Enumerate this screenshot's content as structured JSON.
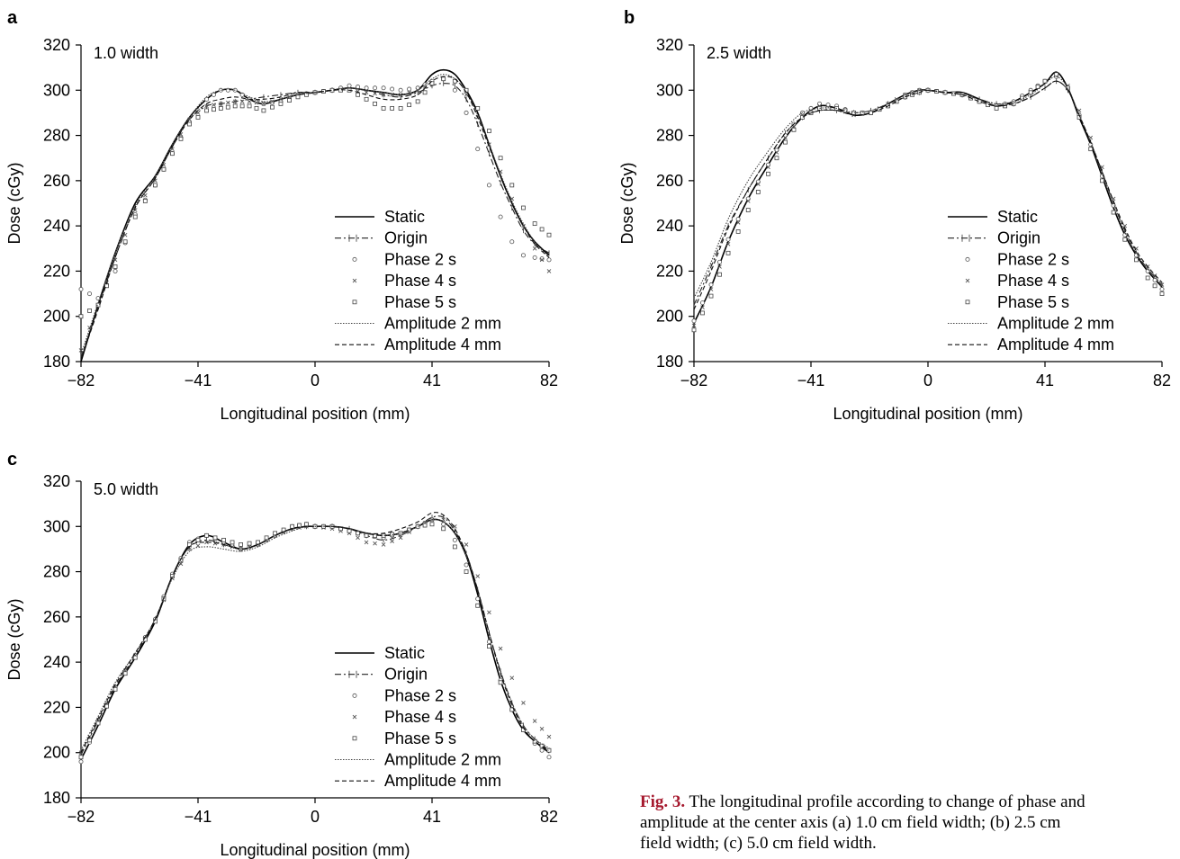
{
  "caption": {
    "label": "Fig. 3.",
    "lines": [
      " The longitudinal profile according to change of phase and",
      "amplitude at the center axis (a) 1.0 cm field width; (b) 2.5 cm",
      "field width; (c) 5.0 cm field width."
    ]
  },
  "legend_entries": [
    {
      "label": "Static",
      "style": "solid"
    },
    {
      "label": "Origin",
      "style": "dashdot-tick"
    },
    {
      "label": "Phase 2 s",
      "style": "circle"
    },
    {
      "label": "Phase 4 s",
      "style": "cross"
    },
    {
      "label": "Phase 5 s",
      "style": "square"
    },
    {
      "label": "Amplitude 2 mm",
      "style": "dotted"
    },
    {
      "label": "Amplitude 4 mm",
      "style": "dashed"
    }
  ],
  "chart_data": [
    {
      "panel": "a",
      "type": "line",
      "annotation": "1.0 width",
      "xlabel": "Longitudinal position (mm)",
      "ylabel": "Dose (cGy)",
      "xlim": [
        -82,
        82
      ],
      "ylim": [
        180,
        320
      ],
      "xticks": [
        -82,
        -41,
        0,
        41,
        82
      ],
      "xtick_labels": [
        "−82",
        "−41",
        "0",
        "41",
        "82"
      ],
      "yticks": [
        180,
        200,
        220,
        240,
        260,
        280,
        300,
        320
      ],
      "grid": false,
      "legend_position": "lower-right",
      "x": [
        -82,
        -76,
        -70,
        -63,
        -56,
        -50,
        -44,
        -38,
        -33,
        -28,
        -23,
        -18,
        -12,
        -6,
        0,
        6,
        12,
        18,
        24,
        30,
        36,
        41,
        45,
        49,
        53,
        57,
        61,
        65,
        69,
        73,
        77,
        82
      ],
      "series": [
        {
          "name": "Static",
          "values": [
            180,
            205,
            228,
            250,
            262,
            276,
            288,
            296,
            300,
            300,
            296,
            294,
            296,
            298,
            299,
            300,
            301,
            300,
            299,
            298,
            300,
            307,
            309,
            307,
            300,
            290,
            276,
            262,
            250,
            240,
            233,
            227
          ]
        },
        {
          "name": "Origin",
          "values": [
            182,
            204,
            226,
            248,
            261,
            275,
            287,
            293,
            294,
            295,
            296,
            297,
            298,
            299,
            299,
            300,
            301,
            300,
            298,
            297,
            299,
            302,
            303,
            302,
            296,
            285,
            272,
            259,
            248,
            238,
            232,
            228
          ]
        },
        {
          "name": "Phase 2 s",
          "values": [
            212,
            208,
            220,
            245,
            258,
            272,
            286,
            296,
            300,
            300,
            296,
            294,
            295,
            298,
            299,
            300,
            302,
            301,
            301,
            300,
            301,
            304,
            305,
            300,
            290,
            274,
            258,
            244,
            233,
            227,
            226,
            225
          ]
        },
        {
          "name": "Phase 4 s",
          "values": [
            185,
            205,
            225,
            247,
            260,
            274,
            287,
            293,
            294,
            295,
            295,
            294,
            296,
            298,
            299,
            300,
            300,
            299,
            298,
            298,
            300,
            303,
            305,
            304,
            298,
            288,
            276,
            264,
            252,
            240,
            230,
            220
          ]
        },
        {
          "name": "Phase 5 s",
          "values": [
            200,
            205,
            222,
            244,
            258,
            272,
            285,
            291,
            292,
            293,
            293,
            291,
            294,
            297,
            299,
            300,
            300,
            296,
            292,
            292,
            295,
            303,
            305,
            304,
            300,
            292,
            282,
            270,
            258,
            248,
            241,
            236
          ]
        },
        {
          "name": "Amplitude 2 mm",
          "values": [
            183,
            206,
            228,
            249,
            262,
            276,
            288,
            297,
            300,
            300,
            297,
            295,
            296,
            298,
            299,
            300,
            301,
            300,
            299,
            298,
            300,
            305,
            307,
            305,
            299,
            289,
            276,
            263,
            251,
            241,
            233,
            226
          ]
        },
        {
          "name": "Amplitude 4 mm",
          "values": [
            181,
            203,
            226,
            248,
            261,
            275,
            287,
            294,
            296,
            297,
            296,
            296,
            297,
            299,
            299,
            300,
            300,
            298,
            296,
            296,
            298,
            304,
            306,
            305,
            299,
            288,
            275,
            262,
            250,
            240,
            232,
            226
          ]
        }
      ]
    },
    {
      "panel": "b",
      "type": "line",
      "annotation": "2.5 width",
      "xlabel": "Longitudinal position (mm)",
      "ylabel": "Dose (cGy)",
      "xlim": [
        -82,
        82
      ],
      "ylim": [
        180,
        320
      ],
      "xticks": [
        -82,
        -41,
        0,
        41,
        82
      ],
      "xtick_labels": [
        "−82",
        "−41",
        "0",
        "41",
        "82"
      ],
      "yticks": [
        180,
        200,
        220,
        240,
        260,
        280,
        300,
        320
      ],
      "grid": false,
      "legend_position": "lower-right",
      "x": [
        -82,
        -76,
        -70,
        -63,
        -56,
        -50,
        -44,
        -38,
        -32,
        -26,
        -20,
        -14,
        -8,
        -3,
        0,
        6,
        12,
        18,
        24,
        30,
        36,
        41,
        45,
        49,
        53,
        57,
        61,
        65,
        69,
        73,
        77,
        82
      ],
      "series": [
        {
          "name": "Static",
          "values": [
            197,
            213,
            233,
            252,
            267,
            279,
            288,
            293,
            292,
            289,
            290,
            294,
            298,
            300,
            300,
            299,
            299,
            296,
            293,
            295,
            299,
            303,
            308,
            301,
            288,
            276,
            262,
            248,
            236,
            227,
            220,
            213
          ]
        },
        {
          "name": "Origin",
          "values": [
            205,
            222,
            240,
            256,
            270,
            281,
            288,
            291,
            291,
            290,
            291,
            294,
            297,
            299,
            300,
            299,
            298,
            296,
            294,
            294,
            297,
            301,
            304,
            300,
            289,
            277,
            264,
            250,
            238,
            228,
            221,
            214
          ]
        },
        {
          "name": "Phase 2 s",
          "values": [
            198,
            214,
            234,
            252,
            267,
            280,
            290,
            294,
            293,
            290,
            290,
            293,
            298,
            300,
            300,
            299,
            298,
            295,
            293,
            295,
            300,
            304,
            306,
            301,
            289,
            276,
            262,
            249,
            236,
            227,
            220,
            212
          ]
        },
        {
          "name": "Phase 4 s",
          "values": [
            196,
            212,
            232,
            251,
            266,
            279,
            289,
            293,
            292,
            289,
            290,
            294,
            298,
            300,
            300,
            299,
            298,
            295,
            292,
            294,
            299,
            304,
            307,
            302,
            291,
            279,
            266,
            252,
            240,
            230,
            222,
            214
          ]
        },
        {
          "name": "Phase 5 s",
          "values": [
            194,
            209,
            228,
            247,
            263,
            277,
            288,
            292,
            292,
            290,
            290,
            293,
            297,
            299,
            300,
            299,
            298,
            295,
            292,
            294,
            299,
            304,
            307,
            301,
            288,
            274,
            260,
            246,
            234,
            225,
            217,
            210
          ]
        },
        {
          "name": "Amplitude 2 mm",
          "values": [
            208,
            224,
            243,
            260,
            273,
            283,
            290,
            292,
            292,
            290,
            291,
            294,
            297,
            300,
            300,
            299,
            298,
            296,
            294,
            295,
            298,
            303,
            306,
            301,
            289,
            277,
            263,
            250,
            237,
            228,
            221,
            214
          ]
        },
        {
          "name": "Amplitude 4 mm",
          "values": [
            203,
            220,
            239,
            256,
            270,
            281,
            288,
            291,
            291,
            289,
            290,
            293,
            297,
            299,
            300,
            299,
            298,
            295,
            293,
            294,
            297,
            301,
            304,
            300,
            289,
            277,
            264,
            251,
            239,
            229,
            222,
            215
          ]
        }
      ]
    },
    {
      "panel": "c",
      "type": "line",
      "annotation": "5.0 width",
      "xlabel": "Longitudinal position (mm)",
      "ylabel": "Dose (cGy)",
      "xlim": [
        -82,
        82
      ],
      "ylim": [
        180,
        320
      ],
      "xticks": [
        -82,
        -41,
        0,
        41,
        82
      ],
      "xtick_labels": [
        "−82",
        "−41",
        "0",
        "41",
        "82"
      ],
      "yticks": [
        180,
        200,
        220,
        240,
        260,
        280,
        300,
        320
      ],
      "grid": false,
      "legend_position": "lower-right",
      "x": [
        -82,
        -76,
        -70,
        -63,
        -56,
        -50,
        -44,
        -38,
        -32,
        -26,
        -20,
        -14,
        -8,
        -3,
        0,
        6,
        12,
        18,
        24,
        30,
        36,
        41,
        45,
        49,
        53,
        57,
        61,
        65,
        69,
        73,
        77,
        82
      ],
      "series": [
        {
          "name": "Static",
          "values": [
            197,
            212,
            228,
            242,
            258,
            278,
            292,
            296,
            293,
            290,
            292,
            296,
            299,
            300,
            300,
            300,
            299,
            297,
            296,
            297,
            300,
            303,
            302,
            297,
            287,
            270,
            250,
            232,
            219,
            210,
            205,
            200
          ]
        },
        {
          "name": "Origin",
          "values": [
            199,
            214,
            229,
            243,
            259,
            278,
            291,
            294,
            292,
            290,
            292,
            296,
            299,
            300,
            300,
            300,
            299,
            296,
            294,
            296,
            300,
            304,
            304,
            298,
            288,
            272,
            253,
            236,
            222,
            212,
            206,
            201
          ]
        },
        {
          "name": "Phase 2 s",
          "values": [
            196,
            213,
            229,
            243,
            259,
            279,
            293,
            296,
            293,
            290,
            292,
            296,
            300,
            301,
            300,
            300,
            298,
            296,
            295,
            297,
            300,
            303,
            301,
            294,
            283,
            268,
            249,
            232,
            219,
            210,
            204,
            198
          ]
        },
        {
          "name": "Phase 4 s",
          "values": [
            200,
            214,
            229,
            243,
            258,
            277,
            290,
            293,
            292,
            290,
            292,
            296,
            299,
            300,
            300,
            299,
            297,
            293,
            292,
            295,
            300,
            303,
            303,
            300,
            292,
            278,
            262,
            246,
            233,
            222,
            214,
            207
          ]
        },
        {
          "name": "Phase 5 s",
          "values": [
            198,
            213,
            228,
            242,
            258,
            278,
            292,
            296,
            294,
            292,
            293,
            297,
            300,
            301,
            300,
            300,
            298,
            296,
            296,
            297,
            300,
            301,
            299,
            291,
            280,
            265,
            247,
            231,
            219,
            210,
            205,
            201
          ]
        },
        {
          "name": "Amplitude 2 mm",
          "values": [
            201,
            216,
            231,
            244,
            259,
            277,
            289,
            291,
            290,
            289,
            291,
            295,
            298,
            300,
            300,
            300,
            299,
            297,
            296,
            297,
            300,
            303,
            302,
            297,
            287,
            272,
            253,
            236,
            222,
            212,
            206,
            202
          ]
        },
        {
          "name": "Amplitude 4 mm",
          "values": [
            200,
            215,
            230,
            244,
            259,
            278,
            291,
            293,
            292,
            290,
            292,
            296,
            299,
            300,
            300,
            300,
            299,
            297,
            297,
            299,
            302,
            306,
            305,
            299,
            288,
            272,
            253,
            235,
            221,
            211,
            205,
            201
          ]
        }
      ]
    }
  ]
}
